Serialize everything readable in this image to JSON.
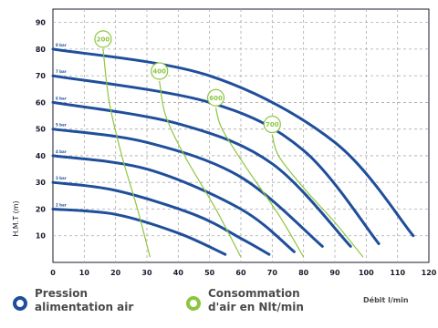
{
  "chart_data": {
    "type": "line",
    "title": "",
    "xlabel": "Débit l/min",
    "ylabel": "H.M.T (m)",
    "xlim": [
      0,
      120
    ],
    "ylim": [
      0,
      95
    ],
    "x_ticks": [
      0,
      10,
      20,
      30,
      40,
      50,
      60,
      70,
      80,
      90,
      100,
      110,
      120
    ],
    "y_ticks": [
      10,
      20,
      30,
      40,
      50,
      60,
      70,
      80,
      90
    ],
    "grid": true,
    "pressure_series": [
      {
        "name": "2 bar",
        "x": [
          0,
          20,
          40,
          55
        ],
        "y": [
          20,
          18,
          11,
          3
        ]
      },
      {
        "name": "3 bar",
        "x": [
          0,
          20,
          45,
          60,
          69
        ],
        "y": [
          30,
          27,
          18,
          9,
          3
        ]
      },
      {
        "name": "4 bar",
        "x": [
          0,
          30,
          60,
          77
        ],
        "y": [
          40,
          35,
          20,
          4
        ]
      },
      {
        "name": "5 bar",
        "x": [
          0,
          30,
          60,
          86
        ],
        "y": [
          50,
          45,
          32,
          6
        ]
      },
      {
        "name": "6 bar",
        "x": [
          0,
          40,
          70,
          95
        ],
        "y": [
          60,
          52,
          37,
          6
        ]
      },
      {
        "name": "7 bar",
        "x": [
          0,
          50,
          80,
          104
        ],
        "y": [
          70,
          60,
          42,
          7
        ]
      },
      {
        "name": "8 bar",
        "x": [
          0,
          50,
          90,
          115
        ],
        "y": [
          80,
          70,
          45,
          10
        ]
      }
    ],
    "air_consumption_series": [
      {
        "name": "200",
        "x": [
          16,
          18,
          22,
          27,
          31
        ],
        "y": [
          80,
          60,
          40,
          20,
          2
        ]
      },
      {
        "name": "400",
        "x": [
          34,
          36,
          42,
          52,
          60
        ],
        "y": [
          68,
          55,
          40,
          20,
          2
        ]
      },
      {
        "name": "600",
        "x": [
          52,
          54,
          62,
          72,
          80
        ],
        "y": [
          58,
          50,
          35,
          18,
          2
        ]
      },
      {
        "name": "700",
        "x": [
          70,
          72,
          80,
          90,
          99
        ],
        "y": [
          48,
          40,
          28,
          15,
          2
        ]
      }
    ]
  },
  "legend": {
    "pressure_line1": "Pression",
    "pressure_line2": "alimentation air",
    "air_line1": "Consommation",
    "air_line2": "d'air en Nlt/min",
    "flow_label": "Débit l/min"
  },
  "colors": {
    "pressure": "#1f4e9b",
    "air": "#8cc63f",
    "grid": "#aaaaaa",
    "axis": "#1a1a2e"
  }
}
